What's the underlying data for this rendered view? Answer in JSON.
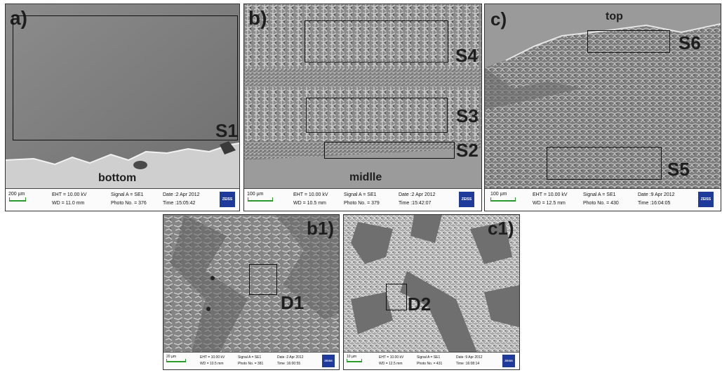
{
  "panels": {
    "a": {
      "panel_label": "a)",
      "region_labels": {
        "s1": "S1",
        "bottom": "bottom"
      },
      "databar": {
        "scale": "200 µm",
        "eht": "EHT = 10.00 kV",
        "wd": "WD = 11.0 mm",
        "signal": "Signal A = SE1",
        "photo": "Photo No. = 376",
        "date": "Date :2 Apr 2012",
        "time": "Time :15:05:42"
      }
    },
    "b": {
      "panel_label": "b)",
      "region_labels": {
        "s4": "S4",
        "s3": "S3",
        "s2": "S2",
        "midlle": "midlle"
      },
      "databar": {
        "scale": "100 µm",
        "eht": "EHT = 10.00 kV",
        "wd": "WD = 10.5 mm",
        "signal": "Signal A = SE1",
        "photo": "Photo No. = 379",
        "date": "Date :2 Apr 2012",
        "time": "Time :15:42:07"
      }
    },
    "c": {
      "panel_label": "c)",
      "region_labels": {
        "top": "top",
        "s6": "S6",
        "s5": "S5"
      },
      "databar": {
        "scale": "100 µm",
        "eht": "EHT = 10.00 kV",
        "wd": "WD = 12.5 mm",
        "signal": "Signal A = SE1",
        "photo": "Photo No. = 430",
        "date": "Date :9 Apr 2012",
        "time": "Time :16:04:05"
      }
    },
    "b1": {
      "panel_label": "b1)",
      "region_labels": {
        "d1": "D1"
      },
      "databar": {
        "scale": "20 µm",
        "eht": "EHT = 10.00 kV",
        "wd": "WD = 10.5 mm",
        "signal": "Signal A = SE1",
        "photo": "Photo No. = 381",
        "date": "Date :2 Apr 2012",
        "time": "Time :16:00:55"
      }
    },
    "c1": {
      "panel_label": "c1)",
      "region_labels": {
        "d2": "D2"
      },
      "databar": {
        "scale": "10 µm",
        "eht": "EHT = 10.00 kV",
        "wd": "WD = 12.5 mm",
        "signal": "Signal A = SE1",
        "photo": "Photo No. = 431",
        "date": "Date :9 Apr 2012",
        "time": "Time :16:08:14"
      }
    }
  },
  "logo_text": "ZEISS",
  "colors": {
    "scale_bar": "#2a9a2a",
    "logo_bg": "#1e3a9a",
    "frame": "#333333",
    "label": "#1e1e1e"
  }
}
